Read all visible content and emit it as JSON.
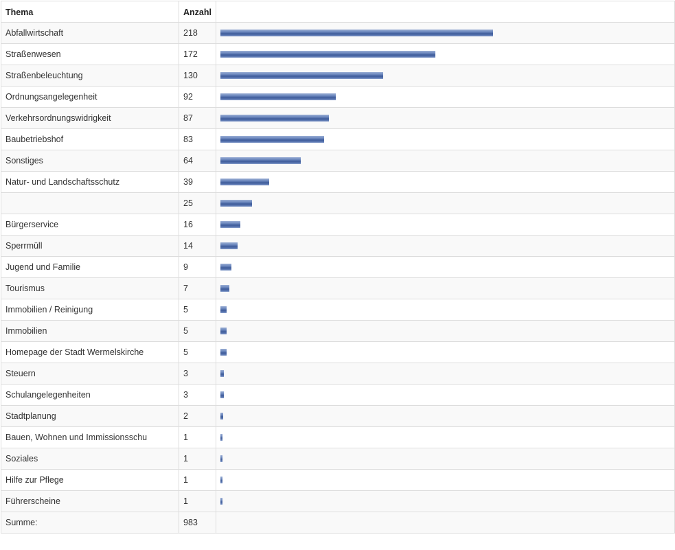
{
  "table": {
    "headers": {
      "thema": "Thema",
      "anzahl": "Anzahl",
      "bar": ""
    },
    "summe_label": "Summe:",
    "summe_value": "983",
    "bar_colors": {
      "top": "#9aaed4",
      "mid": "#3e5c9a",
      "bottom": "#8ea4cf"
    }
  },
  "chart_data": {
    "type": "bar",
    "orientation": "horizontal",
    "categories": [
      "Abfallwirtschaft",
      "Straßenwesen",
      "Straßenbeleuchtung",
      "Ordnungsangelegenheit",
      "Verkehrsordnungswidrigkeit",
      "Baubetriebshof",
      "Sonstiges",
      "Natur- und Landschaftsschutz",
      "",
      "Bürgerservice",
      "Sperrmüll",
      "Jugend und Familie",
      "Tourismus",
      "Immobilien / Reinigung",
      "Immobilien",
      "Homepage der Stadt Wermelskirche",
      "Steuern",
      "Schulangelegenheiten",
      "Stadtplanung",
      "Bauen, Wohnen und Immissionsschu",
      "Soziales",
      "Hilfe zur Pflege",
      "Führerscheine"
    ],
    "values": [
      218,
      172,
      130,
      92,
      87,
      83,
      64,
      39,
      25,
      16,
      14,
      9,
      7,
      5,
      5,
      5,
      3,
      3,
      2,
      1,
      1,
      1,
      1
    ],
    "xlim": [
      0,
      218
    ],
    "grid": false,
    "legend": "none"
  }
}
